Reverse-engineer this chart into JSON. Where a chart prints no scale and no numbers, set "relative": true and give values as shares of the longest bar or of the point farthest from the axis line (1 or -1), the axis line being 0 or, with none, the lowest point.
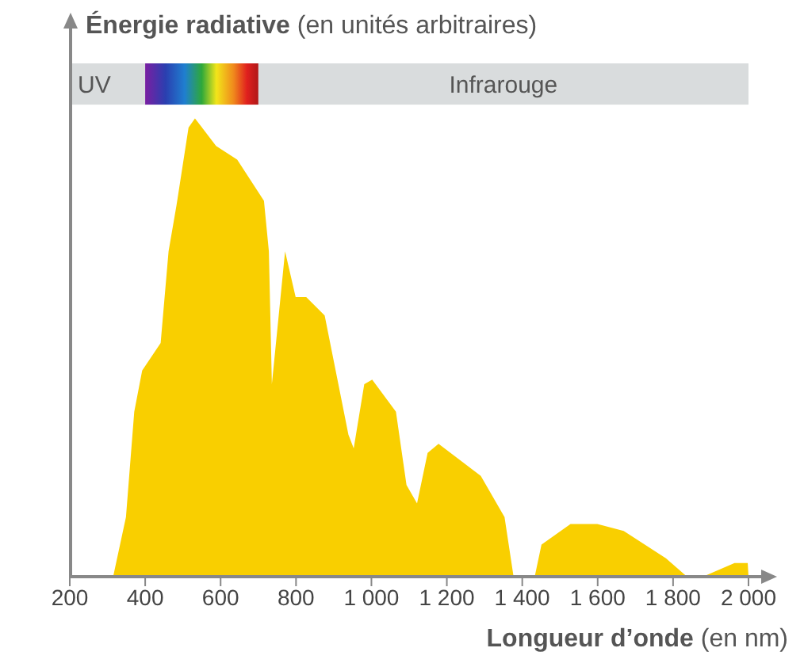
{
  "chart_data": {
    "type": "area",
    "relative": true,
    "ylabel": "Énergie radiative (en unités arbitraires)",
    "xlabel": "Longueur d’onde (en nm)",
    "xlim": [
      200,
      2000
    ],
    "xticks": [
      200,
      400,
      600,
      800,
      {
        "value": 1000,
        "label": "1 000"
      },
      {
        "value": 1200,
        "label": "1 200"
      },
      {
        "value": 1400,
        "label": "1 400"
      },
      {
        "value": 1600,
        "label": "1 600"
      },
      {
        "value": 1800,
        "label": "1 800"
      },
      {
        "value": 2000,
        "label": "2 000"
      }
    ],
    "x": [
      315,
      349,
      371,
      392,
      441,
      462,
      483,
      515,
      532,
      588,
      644,
      715,
      728,
      736,
      771,
      799,
      827,
      876,
      939,
      953,
      981,
      1002,
      1065,
      1093,
      1121,
      1149,
      1178,
      1290,
      1353,
      1377,
      1433,
      1451,
      1528,
      1599,
      1669,
      1781,
      1837,
      1879,
      1963,
      1998,
      2000
    ],
    "series": [
      {
        "color": "#f9cf00",
        "values": [
          0,
          0.13,
          0.36,
          0.45,
          0.51,
          0.71,
          0.81,
          0.98,
          1,
          0.94,
          0.91,
          0.82,
          0.71,
          0.42,
          0.71,
          0.61,
          0.61,
          0.57,
          0.31,
          0.28,
          0.42,
          0.43,
          0.36,
          0.2,
          0.16,
          0.27,
          0.29,
          0.22,
          0.13,
          0,
          0,
          0.07,
          0.115,
          0.115,
          0.1,
          0.04,
          0,
          0,
          0.03,
          0.03,
          0
        ]
      }
    ],
    "annotations": [
      "UV",
      "Infrarouge"
    ]
  }
}
